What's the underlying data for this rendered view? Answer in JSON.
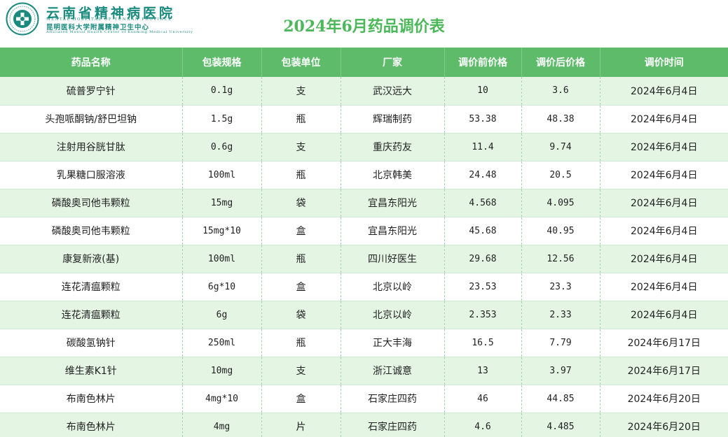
{
  "header": {
    "hospital_name": "云南省精神病医院",
    "hospital_name_en": "MENTAL HOSPITAL OF YUNNAN PROVINCE",
    "hospital_subtitle": "昆明医科大学附属精神卫生中心",
    "hospital_subtitle_en": "Affiliated Mental Health Center of Kunming Medical University",
    "logo_icon": "hospital-logo-icon",
    "brand_color": "#1a8a7e"
  },
  "title": "2024年6月药品调价表",
  "colors": {
    "title": "#4cb85a",
    "header_bg": "#5dbb6a",
    "row_alt_bg": "#e4f5e4"
  },
  "table": {
    "columns": [
      "药品名称",
      "包装规格",
      "包装单位",
      "厂家",
      "调价前价格",
      "调价后价格",
      "调价时间"
    ],
    "rows": [
      [
        "硫普罗宁针",
        "0.1g",
        "支",
        "武汉远大",
        "10",
        "3.6",
        "2024年6月4日"
      ],
      [
        "头孢哌酮钠/舒巴坦钠",
        "1.5g",
        "瓶",
        "辉瑞制药",
        "53.38",
        "48.38",
        "2024年6月4日"
      ],
      [
        "注射用谷胱甘肽",
        "0.6g",
        "支",
        "重庆药友",
        "11.4",
        "9.74",
        "2024年6月4日"
      ],
      [
        "乳果糖口服溶液",
        "100ml",
        "瓶",
        "北京韩美",
        "24.48",
        "20.5",
        "2024年6月4日"
      ],
      [
        "磷酸奥司他韦颗粒",
        "15mg",
        "袋",
        "宜昌东阳光",
        "4.568",
        "4.095",
        "2024年6月4日"
      ],
      [
        "磷酸奥司他韦颗粒",
        "15mg*10",
        "盒",
        "宜昌东阳光",
        "45.68",
        "40.95",
        "2024年6月4日"
      ],
      [
        "康复新液(基)",
        "100ml",
        "瓶",
        "四川好医生",
        "29.68",
        "12.56",
        "2024年6月4日"
      ],
      [
        "连花清瘟颗粒",
        "6g*10",
        "盒",
        "北京以岭",
        "23.53",
        "23.3",
        "2024年6月4日"
      ],
      [
        "连花清瘟颗粒",
        "6g",
        "袋",
        "北京以岭",
        "2.353",
        "2.33",
        "2024年6月4日"
      ],
      [
        "碳酸氢钠针",
        "250ml",
        "瓶",
        "正大丰海",
        "16.5",
        "7.79",
        "2024年6月17日"
      ],
      [
        "维生素K1针",
        "10mg",
        "支",
        "浙江诚意",
        "13",
        "3.97",
        "2024年6月17日"
      ],
      [
        "布南色林片",
        "4mg*10",
        "盒",
        "石家庄四药",
        "46",
        "44.85",
        "2024年6月20日"
      ],
      [
        "布南色林片",
        "4mg",
        "片",
        "石家庄四药",
        "4.6",
        "4.485",
        "2024年6月20日"
      ]
    ]
  }
}
